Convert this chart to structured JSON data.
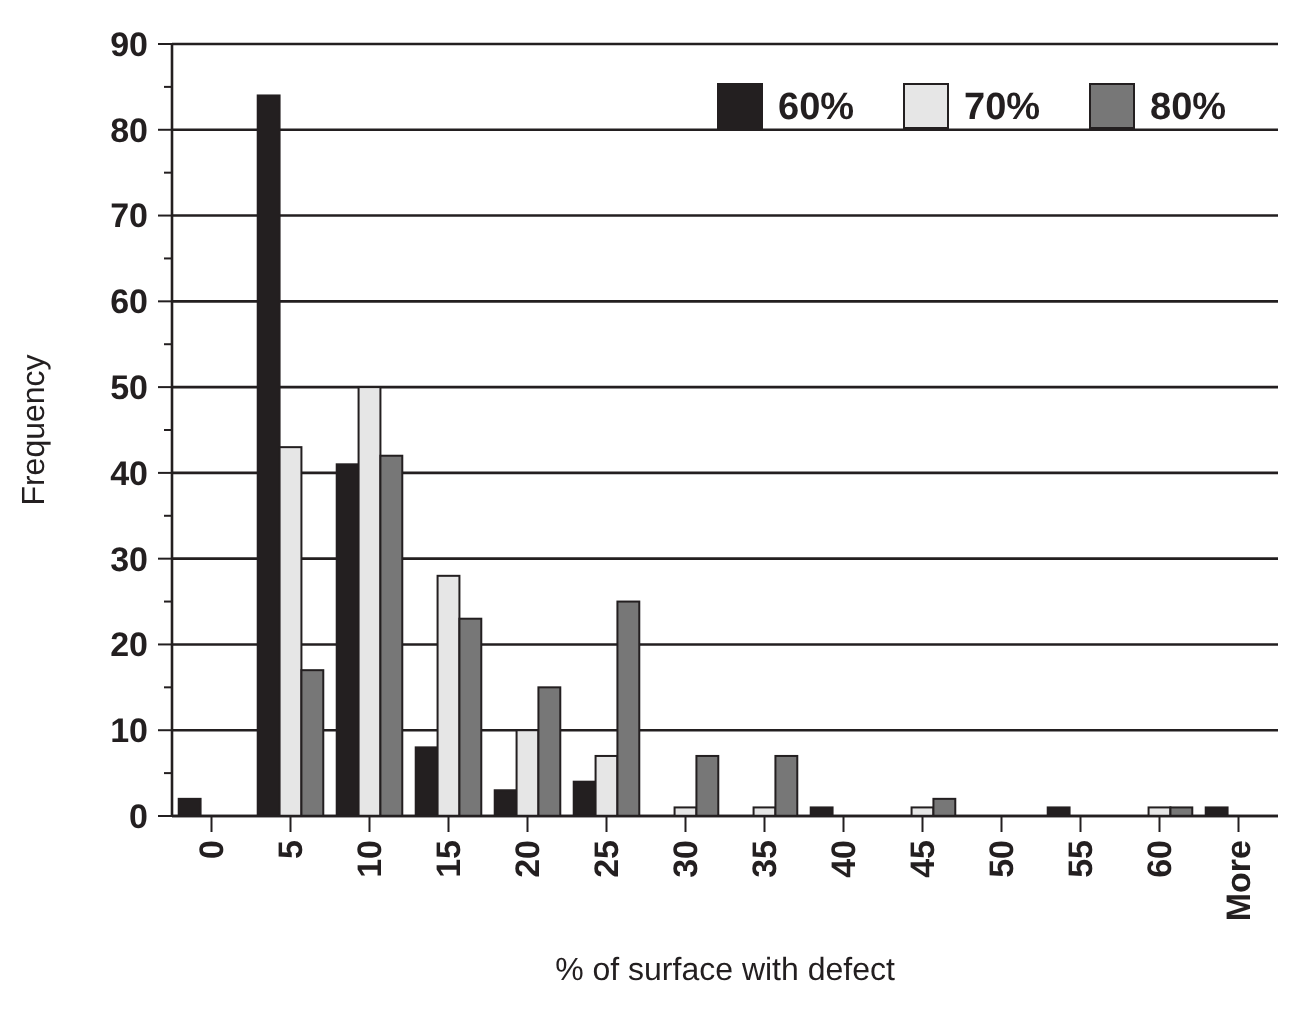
{
  "chart_data": {
    "type": "bar",
    "xlabel": "% of surface with defect",
    "ylabel": "Frequency",
    "categories": [
      "0",
      "5",
      "10",
      "15",
      "20",
      "25",
      "30",
      "35",
      "40",
      "45",
      "50",
      "55",
      "60",
      "More"
    ],
    "series": [
      {
        "name": "60%",
        "color": "#231f20",
        "values": [
          2,
          84,
          41,
          8,
          3,
          4,
          0,
          0,
          1,
          0,
          0,
          1,
          0,
          1
        ]
      },
      {
        "name": "70%",
        "color": "#e6e6e6",
        "values": [
          0,
          43,
          50,
          28,
          10,
          7,
          1,
          1,
          0,
          1,
          0,
          0,
          1,
          0
        ]
      },
      {
        "name": "80%",
        "color": "#777777",
        "values": [
          0,
          17,
          42,
          23,
          15,
          25,
          7,
          7,
          0,
          2,
          0,
          0,
          1,
          0
        ]
      }
    ],
    "ylim": [
      0,
      90
    ],
    "yticks": [
      0,
      {
        "value": 5,
        "label": null
      },
      10,
      {
        "value": 15,
        "label": null
      },
      20,
      {
        "value": 25,
        "label": null
      },
      30,
      {
        "value": 35,
        "label": null
      },
      40,
      {
        "value": 45,
        "label": null
      },
      50,
      {
        "value": 55,
        "label": null
      },
      60,
      {
        "value": 65,
        "label": null
      },
      70,
      {
        "value": 75,
        "label": null
      },
      80,
      {
        "value": 85,
        "label": null
      },
      90
    ],
    "grid": "y",
    "legend": "top right"
  }
}
